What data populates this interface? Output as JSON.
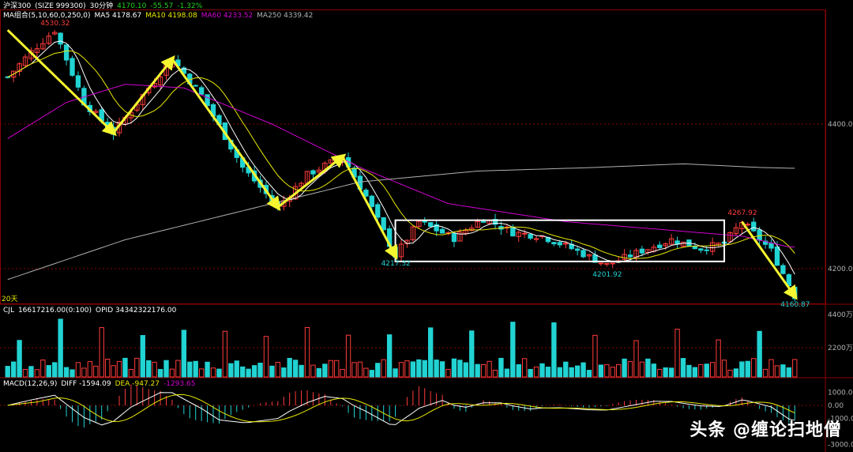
{
  "header": {
    "index_name": "沪深300",
    "code": "(SIZE 999300)",
    "period": "30分钟",
    "price": "4170.10",
    "change": "-55.57",
    "change_pct": "-1.32%"
  },
  "ma_legend": {
    "label": "MA组合(5,10,60,0,250,0)",
    "ma5": "MA5 4178.67",
    "ma10": "MA10 4198.08",
    "ma60": "MA60 4233.52",
    "ma250": "MA250 4339.42"
  },
  "volume_legend": {
    "label": "CJL",
    "value": "16617216.00(0:100)",
    "opid": "OPID 34342322176.00"
  },
  "macd_legend": {
    "label": "MACD(12,26,9)",
    "diff": "DIFF -1594.09",
    "dea": "DEA -947.27",
    "macd": "-1293.65"
  },
  "days_label": "20天",
  "watermark": "头条 @缠论扫地僧",
  "colors": {
    "up": "#ff3c3c",
    "down": "#22d3d3",
    "ma5": "#ffffff",
    "ma10": "#e8e800",
    "ma60": "#d000d0",
    "ma250": "#b0b0b0",
    "arrow": "#f5f530",
    "grid": "#8b0000",
    "axis": "#b0b0b0"
  },
  "chart_data": {
    "type": "candlestick",
    "price_axis": {
      "ticks": [
        4400.0,
        4200.0
      ]
    },
    "volume_axis": {
      "ticks": [
        "4400万",
        "2200万"
      ]
    },
    "macd_axis": {
      "ticks": [
        1000.0,
        0.0,
        -1000.0,
        -3000.0
      ]
    },
    "annotations": [
      {
        "label": "4530.32",
        "kind": "high"
      },
      {
        "label": "4217.32",
        "kind": "low"
      },
      {
        "label": "4201.92",
        "kind": "low"
      },
      {
        "label": "4267.92",
        "kind": "high"
      },
      {
        "label": "4160.87",
        "kind": "low"
      }
    ],
    "trend_arrows": [
      {
        "from": [
          0,
          4530
        ],
        "to": [
          18,
          4388
        ]
      },
      {
        "from": [
          18,
          4388
        ],
        "to": [
          28,
          4490
        ]
      },
      {
        "from": [
          28,
          4490
        ],
        "to": [
          46,
          4285
        ]
      },
      {
        "from": [
          46,
          4285
        ],
        "to": [
          57,
          4355
        ]
      },
      {
        "from": [
          57,
          4355
        ],
        "to": [
          66,
          4218
        ]
      },
      {
        "from": [
          125,
          4265
        ],
        "to": [
          134,
          4162
        ]
      }
    ],
    "consolidation_box": {
      "x_from": 66,
      "x_to": 122,
      "y_from": 4210,
      "y_to": 4267
    },
    "path": [
      [
        0,
        4465
      ],
      [
        4,
        4500
      ],
      [
        8,
        4530
      ],
      [
        13,
        4430
      ],
      [
        18,
        4388
      ],
      [
        23,
        4440
      ],
      [
        28,
        4490
      ],
      [
        33,
        4440
      ],
      [
        40,
        4340
      ],
      [
        46,
        4285
      ],
      [
        51,
        4330
      ],
      [
        57,
        4355
      ],
      [
        61,
        4300
      ],
      [
        66,
        4218
      ],
      [
        70,
        4265
      ],
      [
        76,
        4242
      ],
      [
        81,
        4270
      ],
      [
        86,
        4250
      ],
      [
        91,
        4245
      ],
      [
        96,
        4228
      ],
      [
        102,
        4205
      ],
      [
        108,
        4225
      ],
      [
        113,
        4240
      ],
      [
        118,
        4228
      ],
      [
        122,
        4235
      ],
      [
        125,
        4265
      ],
      [
        130,
        4225
      ],
      [
        134,
        4162
      ]
    ],
    "bars": 135,
    "ma60_path": [
      [
        0,
        4380
      ],
      [
        10,
        4430
      ],
      [
        20,
        4455
      ],
      [
        30,
        4450
      ],
      [
        45,
        4400
      ],
      [
        60,
        4340
      ],
      [
        75,
        4290
      ],
      [
        95,
        4265
      ],
      [
        110,
        4255
      ],
      [
        125,
        4245
      ],
      [
        133,
        4230
      ]
    ],
    "ma250_path": [
      [
        0,
        4185
      ],
      [
        20,
        4240
      ],
      [
        40,
        4280
      ],
      [
        60,
        4320
      ],
      [
        80,
        4335
      ],
      [
        100,
        4340
      ],
      [
        115,
        4345
      ],
      [
        128,
        4340
      ],
      [
        133,
        4339
      ]
    ]
  }
}
